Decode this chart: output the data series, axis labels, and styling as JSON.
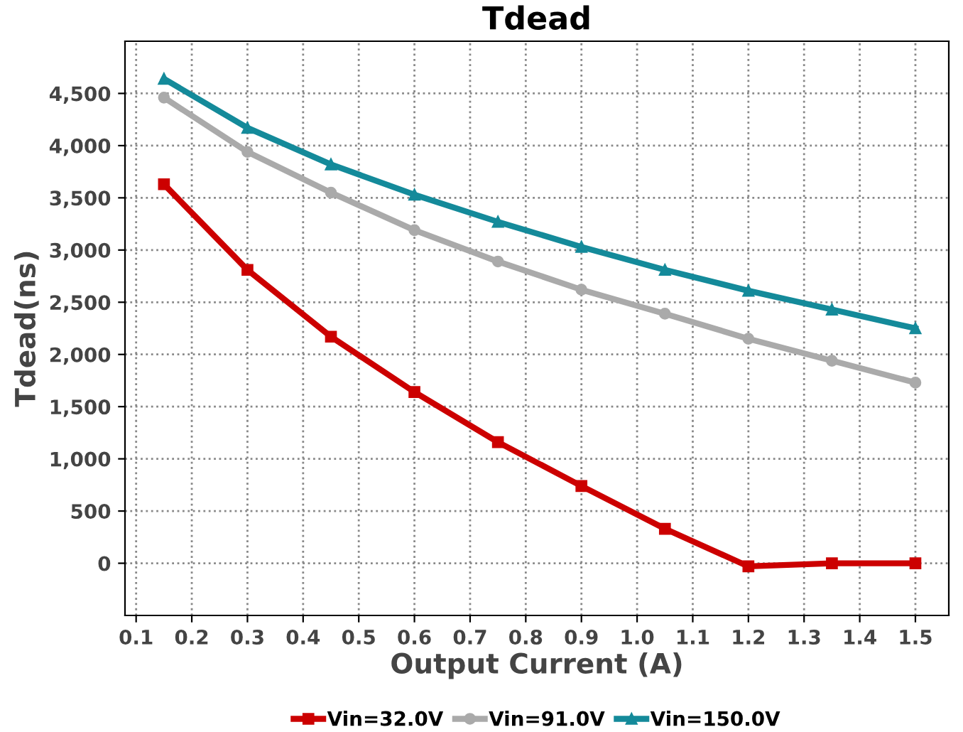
{
  "chart_data": {
    "type": "line",
    "title": "Tdead",
    "xlabel": "Output Current (A)",
    "ylabel": "Tdead(ns)",
    "x": [
      0.15,
      0.3,
      0.45,
      0.6,
      0.75,
      0.9,
      1.05,
      1.2,
      1.35,
      1.5
    ],
    "series": [
      {
        "name": "Vin=32.0V",
        "color": "#cc0000",
        "marker": "square",
        "values": [
          3630,
          2810,
          2170,
          1640,
          1160,
          740,
          330,
          -30,
          0,
          0
        ]
      },
      {
        "name": "Vin=91.0V",
        "color": "#aaaaaa",
        "marker": "circle",
        "values": [
          4460,
          3940,
          3550,
          3190,
          2890,
          2620,
          2390,
          2150,
          1940,
          1730
        ]
      },
      {
        "name": "Vin=150.0V",
        "color": "#148a9a",
        "marker": "triangle",
        "values": [
          4640,
          4170,
          3820,
          3530,
          3270,
          3030,
          2810,
          2610,
          2430,
          2250
        ]
      }
    ],
    "xlim": [
      0.08,
      1.56
    ],
    "ylim": [
      -500,
      5000
    ],
    "xticks": [
      0.1,
      0.2,
      0.3,
      0.4,
      0.5,
      0.6,
      0.7,
      0.8,
      0.9,
      {
        "value": 1.0,
        "label": "1.0"
      },
      1.1,
      1.2,
      1.3,
      1.4,
      1.5
    ],
    "yticks": [
      {
        "value": 0,
        "label": "0"
      },
      {
        "value": 500,
        "label": "500"
      },
      {
        "value": 1000,
        "label": "1,000"
      },
      {
        "value": 1500,
        "label": "1,500"
      },
      {
        "value": 2000,
        "label": "2,000"
      },
      {
        "value": 2500,
        "label": "2,500"
      },
      {
        "value": 3000,
        "label": "3,000"
      },
      {
        "value": 3500,
        "label": "3,500"
      },
      {
        "value": 4000,
        "label": "4,000"
      },
      {
        "value": 4500,
        "label": "4,500"
      }
    ],
    "grid": true,
    "legend": "bottom",
    "line_style": "solid"
  }
}
